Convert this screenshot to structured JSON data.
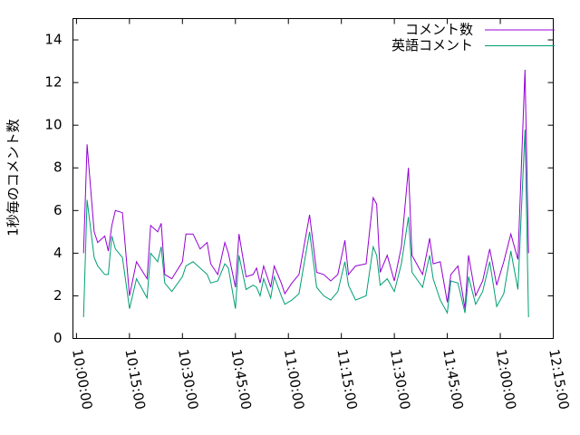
{
  "chart_data": {
    "type": "line",
    "y_label": "1秒毎のコメント数",
    "x": [
      "10:02:00",
      "10:03:00",
      "10:05:00",
      "10:06:00",
      "10:08:00",
      "10:09:00",
      "10:10:00",
      "10:11:00",
      "10:13:00",
      "10:15:00",
      "10:17:00",
      "10:20:00",
      "10:21:00",
      "10:23:00",
      "10:24:00",
      "10:25:00",
      "10:27:00",
      "10:30:00",
      "10:31:00",
      "10:33:00",
      "10:35:00",
      "10:37:00",
      "10:38:00",
      "10:40:00",
      "10:42:00",
      "10:43:00",
      "10:45:00",
      "10:46:00",
      "10:48:00",
      "10:50:00",
      "10:51:00",
      "10:52:00",
      "10:53:00",
      "10:55:00",
      "10:56:00",
      "10:58:00",
      "10:59:00",
      "11:01:00",
      "11:03:00",
      "11:06:00",
      "11:08:00",
      "11:10:00",
      "11:12:00",
      "11:14:00",
      "11:16:00",
      "11:17:00",
      "11:19:00",
      "11:22:00",
      "11:24:00",
      "11:25:00",
      "11:26:00",
      "11:28:00",
      "11:30:00",
      "11:32:00",
      "11:34:00",
      "11:35:00",
      "11:38:00",
      "11:40:00",
      "11:41:00",
      "11:43:00",
      "11:45:00",
      "11:46:00",
      "11:48:00",
      "11:50:00",
      "11:51:00",
      "11:53:00",
      "11:55:00",
      "11:57:00",
      "11:59:00",
      "12:01:00",
      "12:03:00",
      "12:05:00",
      "12:07:00",
      "12:08:00"
    ],
    "series": [
      {
        "name": "コメント数",
        "color": "#9400d3",
        "values": [
          4.0,
          9.1,
          5.0,
          4.5,
          4.8,
          4.1,
          5.3,
          6.0,
          5.9,
          2.0,
          3.6,
          2.8,
          5.3,
          5.0,
          5.4,
          3.0,
          2.8,
          3.6,
          4.9,
          4.9,
          4.2,
          4.5,
          3.5,
          3.0,
          4.5,
          4.0,
          2.4,
          4.9,
          2.9,
          3.0,
          3.3,
          2.6,
          3.4,
          2.4,
          3.4,
          2.6,
          2.1,
          2.6,
          3.0,
          5.8,
          3.1,
          3.0,
          2.7,
          3.0,
          4.6,
          3.0,
          3.4,
          3.5,
          6.6,
          6.3,
          3.1,
          3.9,
          2.7,
          4.3,
          8.0,
          3.9,
          3.0,
          4.7,
          3.5,
          3.6,
          1.7,
          3.0,
          3.4,
          1.4,
          3.9,
          2.0,
          2.7,
          4.2,
          2.5,
          3.6,
          4.9,
          3.7,
          12.6,
          4.0
        ]
      },
      {
        "name": "英語コメント",
        "color": "#009e73",
        "values": [
          1.0,
          6.5,
          3.8,
          3.4,
          3.0,
          3.0,
          4.8,
          4.2,
          3.8,
          1.4,
          2.8,
          1.9,
          4.0,
          3.6,
          4.3,
          2.6,
          2.2,
          2.9,
          3.4,
          3.6,
          3.3,
          3.0,
          2.6,
          2.7,
          3.5,
          3.3,
          1.4,
          3.9,
          2.3,
          2.5,
          2.4,
          2.0,
          2.8,
          1.9,
          2.9,
          2.0,
          1.6,
          1.8,
          2.1,
          5.0,
          2.4,
          2.0,
          1.8,
          2.2,
          3.6,
          2.5,
          1.8,
          2.0,
          4.3,
          3.9,
          2.5,
          2.8,
          2.2,
          3.5,
          5.7,
          3.1,
          2.4,
          3.9,
          2.8,
          1.8,
          1.2,
          2.7,
          2.6,
          1.2,
          2.9,
          1.6,
          2.2,
          3.6,
          1.5,
          2.1,
          4.1,
          2.3,
          9.8,
          1.0
        ]
      }
    ],
    "xlim": [
      "09:59:00",
      "12:15:00"
    ],
    "xticks": [
      "10:00:00",
      "10:15:00",
      "10:30:00",
      "10:45:00",
      "11:00:00",
      "11:15:00",
      "11:30:00",
      "11:45:00",
      "12:00:00",
      "12:15:00"
    ],
    "ylim": [
      0,
      15
    ],
    "yticks": [
      0,
      2,
      4,
      6,
      8,
      10,
      12,
      14
    ],
    "legend": "top-right"
  }
}
